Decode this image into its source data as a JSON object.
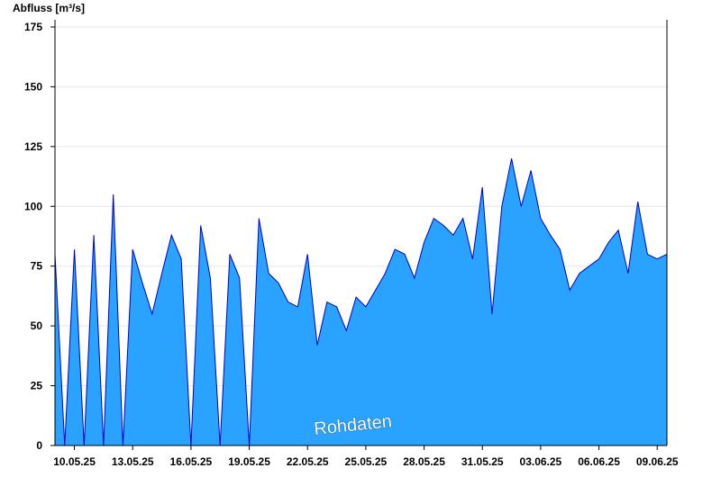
{
  "chart_data": {
    "type": "area",
    "ylabel": "Abfluss [m³/s]",
    "ylim": [
      0,
      178
    ],
    "yticks": [
      0,
      25,
      50,
      75,
      100,
      125,
      150,
      175
    ],
    "xticks": [
      "10.05.25",
      "13.05.25",
      "16.05.25",
      "19.05.25",
      "22.05.25",
      "25.05.25",
      "28.05.25",
      "31.05.25",
      "03.06.25",
      "06.06.25",
      "09.06.25"
    ],
    "x_start": "09.05.25 00:00",
    "x_end": "09.06.25 12:00",
    "grid": true,
    "series": [
      {
        "x": [
          "09.05.25 00:00",
          "09.05.25 12:00",
          "10.05.25 00:00",
          "10.05.25 12:00",
          "11.05.25 00:00",
          "11.05.25 12:00",
          "12.05.25 00:00",
          "12.05.25 12:00",
          "13.05.25 00:00",
          "13.05.25 12:00",
          "14.05.25 00:00",
          "14.05.25 12:00",
          "15.05.25 00:00",
          "15.05.25 12:00",
          "16.05.25 00:00",
          "16.05.25 12:00",
          "17.05.25 00:00",
          "17.05.25 12:00",
          "18.05.25 00:00",
          "18.05.25 12:00",
          "19.05.25 00:00",
          "19.05.25 12:00",
          "20.05.25 00:00",
          "20.05.25 12:00",
          "21.05.25 00:00",
          "21.05.25 12:00",
          "22.05.25 00:00",
          "22.05.25 12:00",
          "23.05.25 00:00",
          "23.05.25 12:00",
          "24.05.25 00:00",
          "24.05.25 12:00",
          "25.05.25 00:00",
          "25.05.25 12:00",
          "26.05.25 00:00",
          "26.05.25 12:00",
          "27.05.25 00:00",
          "27.05.25 12:00",
          "28.05.25 00:00",
          "28.05.25 12:00",
          "29.05.25 00:00",
          "29.05.25 12:00",
          "30.05.25 00:00",
          "30.05.25 12:00",
          "31.05.25 00:00",
          "31.05.25 12:00",
          "01.06.25 00:00",
          "01.06.25 12:00",
          "02.06.25 00:00",
          "02.06.25 12:00",
          "03.06.25 00:00",
          "03.06.25 12:00",
          "04.06.25 00:00",
          "04.06.25 12:00",
          "05.06.25 00:00",
          "05.06.25 12:00",
          "06.06.25 00:00",
          "06.06.25 12:00",
          "07.06.25 00:00",
          "07.06.25 12:00",
          "08.06.25 00:00",
          "08.06.25 12:00",
          "09.06.25 00:00",
          "09.06.25 12:00"
        ],
        "values": [
          80,
          0,
          82,
          0,
          88,
          0,
          105,
          0,
          82,
          68,
          55,
          72,
          88,
          78,
          0,
          92,
          70,
          0,
          80,
          70,
          0,
          95,
          72,
          68,
          60,
          58,
          80,
          42,
          60,
          58,
          48,
          62,
          58,
          65,
          72,
          82,
          80,
          70,
          85,
          95,
          92,
          88,
          95,
          78,
          108,
          55,
          100,
          120,
          100,
          115,
          95,
          88,
          82,
          65,
          72,
          75,
          78,
          85,
          90,
          72,
          102,
          80,
          78,
          80
        ]
      }
    ]
  },
  "watermark": "Rohdaten",
  "colors": {
    "fill": "#29a3ff",
    "line": "#0000cc",
    "grid": "#e6e6e6",
    "axis": "#000000"
  }
}
